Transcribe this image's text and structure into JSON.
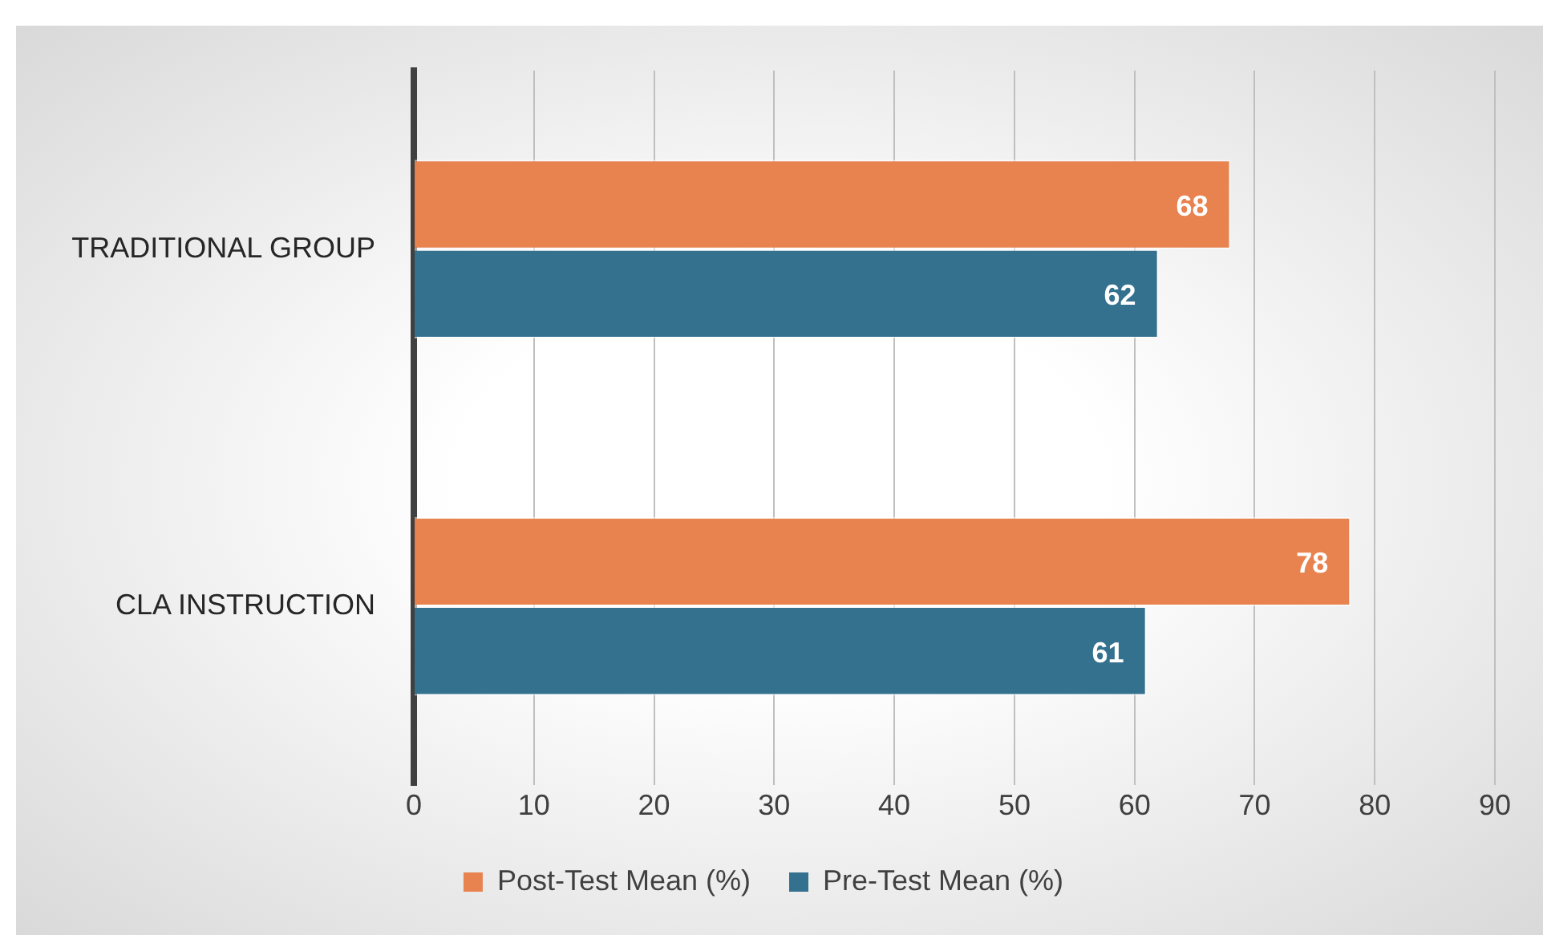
{
  "chart_data": {
    "type": "bar",
    "orientation": "horizontal",
    "categories": [
      "TRADITIONAL GROUP",
      "CLA INSTRUCTION"
    ],
    "series": [
      {
        "name": "Post-Test Mean (%)",
        "color": "#e8834f",
        "values": [
          68,
          78
        ]
      },
      {
        "name": "Pre-Test Mean (%)",
        "color": "#34718f",
        "values": [
          62,
          61
        ]
      }
    ],
    "xlim": [
      0,
      90
    ],
    "xticks": [
      0,
      10,
      20,
      30,
      40,
      50,
      60,
      70,
      80,
      90
    ],
    "grid": "x",
    "legend": "bottom",
    "data_labels": true
  }
}
